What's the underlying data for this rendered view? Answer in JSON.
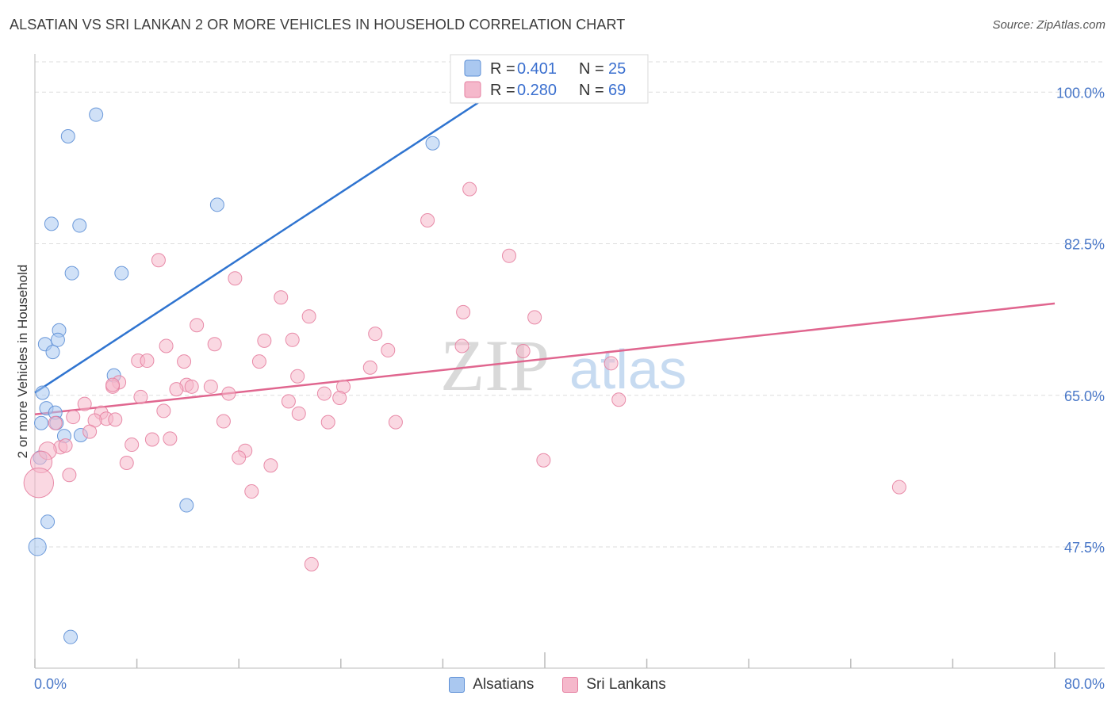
{
  "title": "ALSATIAN VS SRI LANKAN 2 OR MORE VEHICLES IN HOUSEHOLD CORRELATION CHART",
  "source": "Source: ZipAtlas.com",
  "watermark": {
    "zip": "ZIP",
    "atlas": "atlas"
  },
  "colors": {
    "blue_fill": "#aac8f0",
    "blue_stroke": "#5d8fd6",
    "blue_line": "#2f74d0",
    "pink_fill": "#f5b8cb",
    "pink_stroke": "#e57fa0",
    "pink_line": "#e0668f",
    "tick_label": "#4a78c8",
    "grid": "#dddddd"
  },
  "legend": {
    "r_label": "R =",
    "n_label": "N =",
    "rows": [
      {
        "series": "Alsatians",
        "r": "0.401",
        "n": "25"
      },
      {
        "series": "Sri Lankans",
        "r": "0.280",
        "n": "69"
      }
    ]
  },
  "bottom_legend": [
    "Alsatians",
    "Sri Lankans"
  ],
  "chart_data": {
    "type": "scatter",
    "title": "ALSATIAN VS SRI LANKAN 2 OR MORE VEHICLES IN HOUSEHOLD CORRELATION CHART",
    "xlabel": "",
    "ylabel": "2 or more Vehicles in Household",
    "xlim": [
      0,
      80
    ],
    "ylim": [
      33.5,
      103.5
    ],
    "x_tick_labels": [
      "0.0%",
      "80.0%"
    ],
    "y_ticks": [
      47.5,
      65.0,
      82.5,
      100.0
    ],
    "y_tick_labels": [
      "47.5%",
      "65.0%",
      "82.5%",
      "100.0%"
    ],
    "grid": true,
    "series": [
      {
        "name": "Alsatians",
        "trend": {
          "x": [
            0,
            37.8
          ],
          "y": [
            65.3,
            101.7
          ]
        },
        "points": [
          {
            "x": 4.8,
            "y": 97.4,
            "s": 1
          },
          {
            "x": 2.6,
            "y": 94.9,
            "s": 1
          },
          {
            "x": 31.2,
            "y": 94.1,
            "s": 1
          },
          {
            "x": 14.3,
            "y": 87.0,
            "s": 1
          },
          {
            "x": 1.3,
            "y": 84.8,
            "s": 1
          },
          {
            "x": 3.5,
            "y": 84.6,
            "s": 1
          },
          {
            "x": 2.9,
            "y": 79.1,
            "s": 1
          },
          {
            "x": 6.8,
            "y": 79.1,
            "s": 1
          },
          {
            "x": 1.9,
            "y": 72.5,
            "s": 1
          },
          {
            "x": 1.8,
            "y": 71.4,
            "s": 1
          },
          {
            "x": 0.8,
            "y": 70.9,
            "s": 1
          },
          {
            "x": 1.4,
            "y": 70.0,
            "s": 1
          },
          {
            "x": 6.2,
            "y": 67.3,
            "s": 1
          },
          {
            "x": 0.6,
            "y": 65.3,
            "s": 1
          },
          {
            "x": 0.9,
            "y": 63.5,
            "s": 1
          },
          {
            "x": 1.6,
            "y": 63.0,
            "s": 1
          },
          {
            "x": 0.5,
            "y": 61.8,
            "s": 1
          },
          {
            "x": 1.7,
            "y": 61.8,
            "s": 1
          },
          {
            "x": 2.3,
            "y": 60.3,
            "s": 1
          },
          {
            "x": 3.6,
            "y": 60.4,
            "s": 1
          },
          {
            "x": 0.4,
            "y": 57.8,
            "s": 1
          },
          {
            "x": 11.9,
            "y": 52.3,
            "s": 1
          },
          {
            "x": 1.0,
            "y": 50.4,
            "s": 1
          },
          {
            "x": 0.2,
            "y": 47.5,
            "s": 1.3
          },
          {
            "x": 2.8,
            "y": 37.1,
            "s": 1
          }
        ]
      },
      {
        "name": "Sri Lankans",
        "trend": {
          "x": [
            0,
            80
          ],
          "y": [
            62.8,
            75.6
          ]
        },
        "points": [
          {
            "x": 34.1,
            "y": 88.8,
            "s": 1
          },
          {
            "x": 30.8,
            "y": 85.2,
            "s": 1
          },
          {
            "x": 37.2,
            "y": 81.1,
            "s": 1
          },
          {
            "x": 9.7,
            "y": 80.6,
            "s": 1
          },
          {
            "x": 15.7,
            "y": 78.5,
            "s": 1
          },
          {
            "x": 19.3,
            "y": 76.3,
            "s": 1
          },
          {
            "x": 33.6,
            "y": 74.6,
            "s": 1
          },
          {
            "x": 21.5,
            "y": 74.1,
            "s": 1
          },
          {
            "x": 39.2,
            "y": 74.0,
            "s": 1
          },
          {
            "x": 12.7,
            "y": 73.1,
            "s": 1
          },
          {
            "x": 26.7,
            "y": 72.1,
            "s": 1
          },
          {
            "x": 18.0,
            "y": 71.3,
            "s": 1
          },
          {
            "x": 20.2,
            "y": 71.4,
            "s": 1
          },
          {
            "x": 14.1,
            "y": 70.9,
            "s": 1
          },
          {
            "x": 10.3,
            "y": 70.7,
            "s": 1
          },
          {
            "x": 33.5,
            "y": 70.7,
            "s": 1
          },
          {
            "x": 27.7,
            "y": 70.2,
            "s": 1
          },
          {
            "x": 38.3,
            "y": 70.1,
            "s": 1
          },
          {
            "x": 8.1,
            "y": 69.0,
            "s": 1
          },
          {
            "x": 8.8,
            "y": 69.0,
            "s": 1
          },
          {
            "x": 11.7,
            "y": 68.9,
            "s": 1
          },
          {
            "x": 17.6,
            "y": 68.9,
            "s": 1
          },
          {
            "x": 45.2,
            "y": 68.7,
            "s": 1
          },
          {
            "x": 26.3,
            "y": 68.2,
            "s": 1
          },
          {
            "x": 20.6,
            "y": 67.2,
            "s": 1
          },
          {
            "x": 6.6,
            "y": 66.5,
            "s": 1
          },
          {
            "x": 6.1,
            "y": 66.0,
            "s": 1
          },
          {
            "x": 11.9,
            "y": 66.2,
            "s": 1
          },
          {
            "x": 12.3,
            "y": 66.0,
            "s": 1
          },
          {
            "x": 13.8,
            "y": 66.0,
            "s": 1
          },
          {
            "x": 24.2,
            "y": 66.0,
            "s": 1
          },
          {
            "x": 11.1,
            "y": 65.7,
            "s": 1
          },
          {
            "x": 15.2,
            "y": 65.2,
            "s": 1
          },
          {
            "x": 22.7,
            "y": 65.2,
            "s": 1
          },
          {
            "x": 8.3,
            "y": 64.8,
            "s": 1
          },
          {
            "x": 23.9,
            "y": 64.7,
            "s": 1
          },
          {
            "x": 19.9,
            "y": 64.3,
            "s": 1
          },
          {
            "x": 45.8,
            "y": 64.5,
            "s": 1
          },
          {
            "x": 3.9,
            "y": 64.0,
            "s": 1
          },
          {
            "x": 10.1,
            "y": 63.2,
            "s": 1
          },
          {
            "x": 5.2,
            "y": 63.0,
            "s": 1
          },
          {
            "x": 20.7,
            "y": 62.9,
            "s": 1
          },
          {
            "x": 3.0,
            "y": 62.5,
            "s": 1
          },
          {
            "x": 5.6,
            "y": 62.3,
            "s": 1
          },
          {
            "x": 6.3,
            "y": 62.2,
            "s": 1
          },
          {
            "x": 4.7,
            "y": 62.1,
            "s": 1
          },
          {
            "x": 14.8,
            "y": 62.0,
            "s": 1
          },
          {
            "x": 23.0,
            "y": 61.9,
            "s": 1
          },
          {
            "x": 28.3,
            "y": 61.9,
            "s": 1
          },
          {
            "x": 1.6,
            "y": 61.8,
            "s": 1
          },
          {
            "x": 4.3,
            "y": 60.8,
            "s": 1
          },
          {
            "x": 10.6,
            "y": 60.0,
            "s": 1
          },
          {
            "x": 9.2,
            "y": 59.9,
            "s": 1
          },
          {
            "x": 7.6,
            "y": 59.3,
            "s": 1
          },
          {
            "x": 2.0,
            "y": 59.0,
            "s": 1
          },
          {
            "x": 2.4,
            "y": 59.2,
            "s": 1
          },
          {
            "x": 1.0,
            "y": 58.6,
            "s": 1.3
          },
          {
            "x": 16.5,
            "y": 58.6,
            "s": 1
          },
          {
            "x": 16.0,
            "y": 57.8,
            "s": 1
          },
          {
            "x": 39.9,
            "y": 57.5,
            "s": 1
          },
          {
            "x": 0.5,
            "y": 57.3,
            "s": 1.6
          },
          {
            "x": 7.2,
            "y": 57.2,
            "s": 1
          },
          {
            "x": 18.5,
            "y": 56.9,
            "s": 1
          },
          {
            "x": 2.7,
            "y": 55.8,
            "s": 1
          },
          {
            "x": 0.3,
            "y": 54.9,
            "s": 2.2
          },
          {
            "x": 67.8,
            "y": 54.4,
            "s": 1
          },
          {
            "x": 17.0,
            "y": 53.9,
            "s": 1
          },
          {
            "x": 21.7,
            "y": 45.5,
            "s": 1
          },
          {
            "x": 6.1,
            "y": 66.2,
            "s": 1
          }
        ]
      }
    ]
  }
}
